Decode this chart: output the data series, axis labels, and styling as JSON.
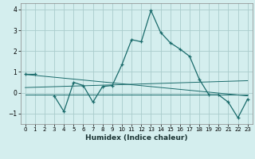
{
  "title": "",
  "xlabel": "Humidex (Indice chaleur)",
  "ylabel": "",
  "bg_color": "#d4eeee",
  "grid_color": "#aacccc",
  "line_color": "#1a6b6b",
  "x_data": [
    0,
    1,
    2,
    3,
    4,
    5,
    6,
    7,
    8,
    9,
    10,
    11,
    12,
    13,
    14,
    15,
    16,
    17,
    18,
    19,
    20,
    21,
    22,
    23
  ],
  "y_main": [
    0.9,
    0.9,
    null,
    -0.15,
    -0.9,
    0.5,
    0.35,
    -0.45,
    0.3,
    0.35,
    1.35,
    2.55,
    2.45,
    3.95,
    2.9,
    2.4,
    2.1,
    1.75,
    0.65,
    -0.1,
    -0.1,
    -0.45,
    -1.2,
    -0.3
  ],
  "ylim": [
    -1.5,
    4.3
  ],
  "xlim": [
    -0.5,
    23.5
  ],
  "yticks": [
    -1,
    0,
    1,
    2,
    3,
    4
  ],
  "xticks": [
    0,
    1,
    2,
    3,
    4,
    5,
    6,
    7,
    8,
    9,
    10,
    11,
    12,
    13,
    14,
    15,
    16,
    17,
    18,
    19,
    20,
    21,
    22,
    23
  ],
  "trend1": {
    "x": [
      0,
      23
    ],
    "y": [
      0.88,
      -0.15
    ]
  },
  "trend2": {
    "x": [
      0,
      23
    ],
    "y": [
      -0.08,
      -0.08
    ]
  },
  "trend3": {
    "x": [
      0,
      23
    ],
    "y": [
      0.25,
      0.58
    ]
  }
}
